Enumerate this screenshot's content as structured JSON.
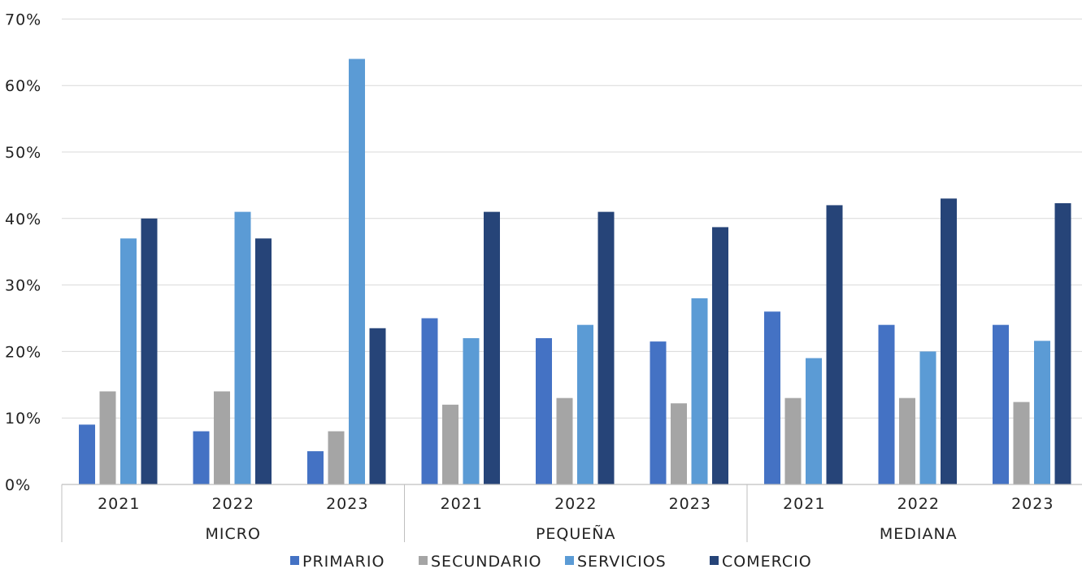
{
  "chart_data": {
    "type": "bar",
    "ylim": [
      0,
      70
    ],
    "yticks": [
      "0%",
      "10%",
      "20%",
      "30%",
      "40%",
      "50%",
      "60%",
      "70%"
    ],
    "ytick_values": [
      0,
      10,
      20,
      30,
      40,
      50,
      60,
      70
    ],
    "grid": true,
    "legend_position": "bottom",
    "groups": [
      {
        "label": "MICRO",
        "years": [
          "2021",
          "2022",
          "2023"
        ]
      },
      {
        "label": "PEQUEÑA",
        "years": [
          "2021",
          "2022",
          "2023"
        ]
      },
      {
        "label": "MEDIANA",
        "years": [
          "2021",
          "2022",
          "2023"
        ]
      }
    ],
    "series": [
      {
        "name": "PRIMARIO",
        "color": "#4472c4",
        "values": [
          9,
          8,
          5,
          25,
          22,
          21.5,
          26,
          24,
          24
        ]
      },
      {
        "name": "SECUNDARIO",
        "color": "#a5a5a5",
        "values": [
          14,
          14,
          8,
          12,
          13,
          12.2,
          13,
          13,
          12.4
        ]
      },
      {
        "name": "SERVICIOS",
        "color": "#5b9bd5",
        "values": [
          37,
          41,
          64,
          22,
          24,
          28,
          19,
          20,
          21.6
        ]
      },
      {
        "name": "COMERCIO",
        "color": "#264478",
        "values": [
          40,
          37,
          23.5,
          41,
          41,
          38.7,
          42,
          43,
          42.3
        ]
      }
    ]
  }
}
